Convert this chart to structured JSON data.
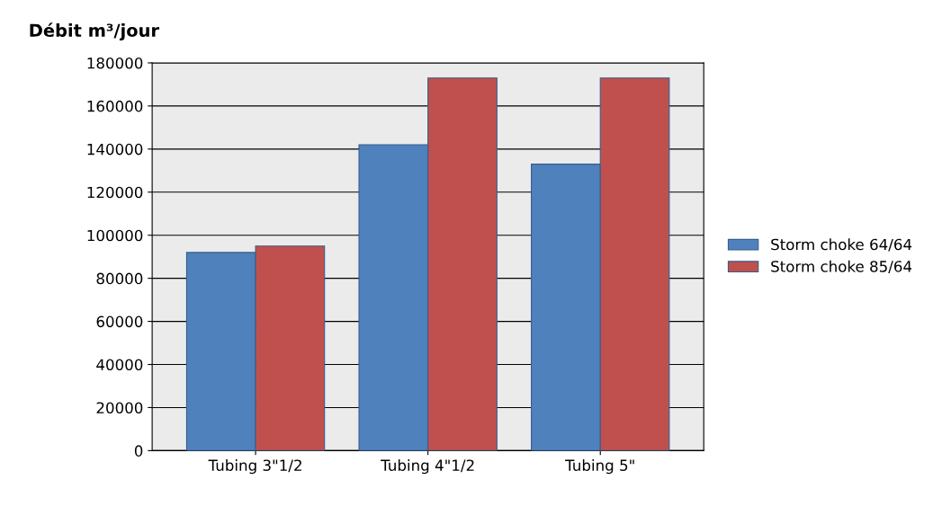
{
  "chart_data": {
    "type": "bar",
    "ylabel": "Débit m³/jour",
    "categories": [
      "Tubing 3\"1/2",
      "Tubing 4\"1/2",
      "Tubing 5\""
    ],
    "series": [
      {
        "name": "Storm choke 64/64",
        "color": "#4f81bd",
        "values": [
          92000,
          142000,
          133000
        ]
      },
      {
        "name": "Storm choke 85/64",
        "color": "#c0504d",
        "values": [
          95000,
          173000,
          173000
        ]
      }
    ],
    "ylim": [
      0,
      180000
    ],
    "yticks": [
      0,
      20000,
      40000,
      60000,
      80000,
      100000,
      120000,
      140000,
      160000,
      180000
    ],
    "grid": "y",
    "legend": "right"
  }
}
